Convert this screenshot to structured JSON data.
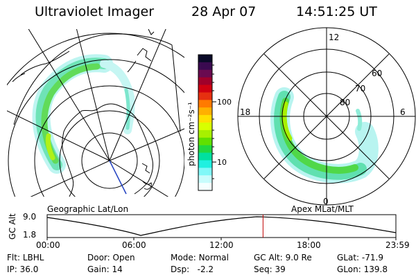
{
  "header": {
    "instrument": "Ultraviolet Imager",
    "date": "28 Apr 07",
    "time": "14:51:25 UT"
  },
  "colorbar": {
    "unit_label": "photon cm⁻²s⁻¹",
    "ticks": [
      "100",
      "10"
    ],
    "colors": [
      "#0a0a28",
      "#3a0a50",
      "#6a0a50",
      "#a0002a",
      "#d00010",
      "#e63010",
      "#ff7a00",
      "#ffb000",
      "#ffe000",
      "#d8ff00",
      "#a8f000",
      "#60e000",
      "#20d840",
      "#00e0a0",
      "#20f0e0",
      "#80f8f8",
      "#c8fcfc",
      "#f4ffff"
    ]
  },
  "left_map": {
    "label": "Geographic Lat/Lon"
  },
  "right_map": {
    "label": "Apex MLat/MLT",
    "mlt_labels": [
      "12",
      "18",
      "6",
      "0"
    ],
    "lat_labels": [
      "60",
      "70",
      "80"
    ]
  },
  "timeline": {
    "ylabel": "GC Alt",
    "yticks": [
      "9.0",
      "1.8"
    ],
    "xticks": [
      "00:00",
      "06:00",
      "12:00",
      "18:00",
      "23:59"
    ],
    "current_marker_hours": 14.857
  },
  "info": {
    "row1": [
      {
        "label": "Flt:",
        "value": "LBHL"
      },
      {
        "label": "Door:",
        "value": "Open"
      },
      {
        "label": "Mode:",
        "value": "Normal"
      },
      {
        "label": "GC Alt:",
        "value": "9.0 Re"
      },
      {
        "label": "GLat:",
        "value": "-71.9"
      }
    ],
    "row2": [
      {
        "label": "IP:",
        "value": "36.0"
      },
      {
        "label": "Gain:",
        "value": "14"
      },
      {
        "label": "Dsp:",
        "value": "-2.2"
      },
      {
        "label": "Seq:",
        "value": "39"
      },
      {
        "label": "GLon:",
        "value": "139.8"
      }
    ]
  }
}
